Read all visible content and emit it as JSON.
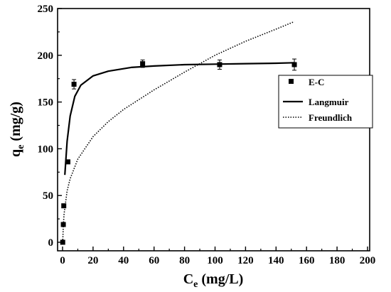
{
  "chart_data": {
    "type": "scatter",
    "xlabel": {
      "main": "C",
      "sub": "e",
      "unit": " (mg/L)"
    },
    "ylabel": {
      "main": "q",
      "sub": "e",
      "unit": " (mg/g)"
    },
    "xlim": [
      0,
      200
    ],
    "ylim": [
      0,
      250
    ],
    "xticks": [
      0,
      20,
      40,
      60,
      80,
      100,
      120,
      140,
      160,
      180,
      200
    ],
    "yticks": [
      0,
      50,
      100,
      150,
      200,
      250
    ],
    "grid": false,
    "legend_position": "top-right",
    "series": [
      {
        "name": "E-C",
        "kind": "points",
        "marker": "square",
        "error_bars": true,
        "x": [
          0.1,
          0.5,
          0.8,
          3.5,
          7.5,
          52.5,
          103,
          152
        ],
        "y": [
          0,
          19,
          39,
          86,
          169,
          191,
          190,
          190
        ],
        "err": [
          0,
          0,
          0,
          0,
          5,
          4,
          5,
          6
        ]
      },
      {
        "name": "Langmuir",
        "kind": "line",
        "style": "solid",
        "x": [
          1.5,
          3,
          5,
          8,
          12,
          20,
          30,
          45,
          60,
          80,
          100,
          120,
          140,
          152
        ],
        "y": [
          72,
          108,
          135,
          156,
          168,
          178,
          183,
          187,
          188.5,
          190,
          190.5,
          191,
          191.5,
          192
        ]
      },
      {
        "name": "Freundlich",
        "kind": "line",
        "style": "dotted",
        "x": [
          0.1,
          0.5,
          1,
          3,
          5,
          10,
          20,
          30,
          40,
          60,
          80,
          100,
          120,
          140,
          152
        ],
        "y": [
          0,
          18,
          30,
          55,
          68,
          89,
          113,
          129,
          142,
          163,
          182,
          200,
          215,
          228,
          236
        ]
      }
    ]
  }
}
